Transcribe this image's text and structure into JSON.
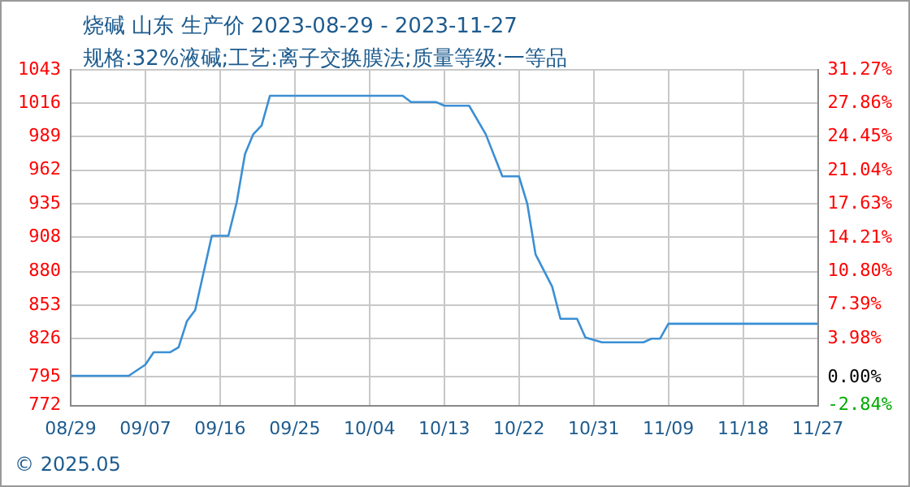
{
  "chart_data": {
    "type": "line",
    "title": "烧碱 山东 生产价 2023-08-29 - 2023-11-27",
    "subtitle": "规格:32%液碱;工艺:离子交换膜法;质量等级:一等品",
    "x": [
      "2023-08-29",
      "2023-09-05",
      "2023-09-07",
      "2023-09-08",
      "2023-09-10",
      "2023-09-11",
      "2023-09-12",
      "2023-09-13",
      "2023-09-15",
      "2023-09-17",
      "2023-09-18",
      "2023-09-19",
      "2023-09-20",
      "2023-09-21",
      "2023-09-22",
      "2023-10-08",
      "2023-10-09",
      "2023-10-12",
      "2023-10-13",
      "2023-10-16",
      "2023-10-18",
      "2023-10-20",
      "2023-10-22",
      "2023-10-23",
      "2023-10-24",
      "2023-10-26",
      "2023-10-27",
      "2023-10-29",
      "2023-10-30",
      "2023-11-01",
      "2023-11-06",
      "2023-11-07",
      "2023-11-08",
      "2023-11-09",
      "2023-11-27"
    ],
    "series": [
      {
        "color": "#3b8fd4",
        "values": [
          796,
          796,
          805,
          815,
          815,
          819,
          840,
          849,
          909,
          909,
          936,
          975,
          991,
          998,
          1022,
          1022,
          1017,
          1017,
          1014,
          1014,
          991,
          957,
          957,
          935,
          894,
          868,
          842,
          842,
          827,
          823,
          823,
          826,
          826,
          838,
          838
        ]
      }
    ],
    "xlim": [
      "2023-08-29",
      "2023-11-27"
    ],
    "xticks": [
      {
        "value": "2023-08-29",
        "label": "08/29"
      },
      {
        "value": "2023-09-07",
        "label": "09/07"
      },
      {
        "value": "2023-09-16",
        "label": "09/16"
      },
      {
        "value": "2023-09-25",
        "label": "09/25"
      },
      {
        "value": "2023-10-04",
        "label": "10/04"
      },
      {
        "value": "2023-10-13",
        "label": "10/13"
      },
      {
        "value": "2023-10-22",
        "label": "10/22"
      },
      {
        "value": "2023-10-31",
        "label": "10/31"
      },
      {
        "value": "2023-11-09",
        "label": "11/09"
      },
      {
        "value": "2023-11-18",
        "label": "11/18"
      },
      {
        "value": "2023-11-27",
        "label": "11/27"
      }
    ],
    "ylim": [
      772,
      1043
    ],
    "yticks": [
      772,
      795,
      826,
      853,
      880,
      908,
      935,
      962,
      989,
      1016,
      1043
    ],
    "y2lim": [
      -2.84,
      31.27
    ],
    "y2ticks": [
      {
        "value": -2.84,
        "label": "-2.84%"
      },
      {
        "value": 0,
        "label": "0.00%"
      },
      {
        "value": 3.98,
        "label": "3.98%"
      },
      {
        "value": 7.39,
        "label": "7.39%"
      },
      {
        "value": 10.8,
        "label": "10.80%"
      },
      {
        "value": 14.21,
        "label": "14.21%"
      },
      {
        "value": 17.63,
        "label": "17.63%"
      },
      {
        "value": 21.04,
        "label": "21.04%"
      },
      {
        "value": 24.45,
        "label": "24.45%"
      },
      {
        "value": 27.86,
        "label": "27.86%"
      },
      {
        "value": 31.27,
        "label": "31.27%"
      }
    ],
    "grid": true,
    "marker": "none",
    "line_style": "solid",
    "annotations": [
      "© 2025.05"
    ]
  }
}
